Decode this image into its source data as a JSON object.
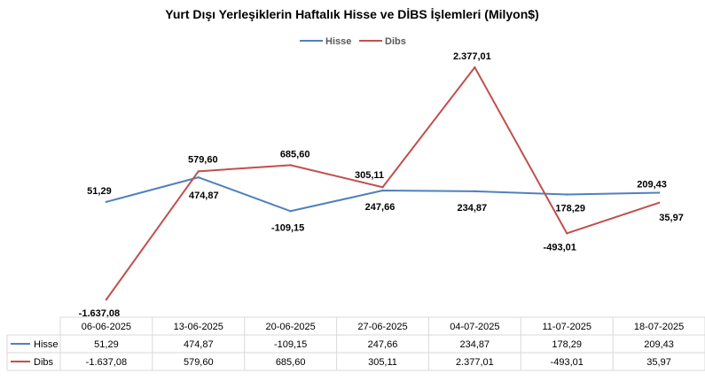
{
  "chart_data": {
    "type": "line",
    "title": "Yurt Dışı Yerleşiklerin Haftalık Hisse ve DİBS İşlemleri (Milyon$)",
    "categories": [
      "06-06-2025",
      "13-06-2025",
      "20-06-2025",
      "27-06-2025",
      "04-07-2025",
      "11-07-2025",
      "18-07-2025"
    ],
    "series": [
      {
        "name": "Hisse",
        "color": "#4f81bd",
        "values": [
          51.29,
          474.87,
          -109.15,
          247.66,
          234.87,
          178.29,
          209.43
        ],
        "labels": [
          "51,29",
          "474,87",
          "-109,15",
          "247,66",
          "234,87",
          "178,29",
          "209,43"
        ]
      },
      {
        "name": "Dibs",
        "color": "#c0504d",
        "values": [
          -1637.08,
          579.6,
          685.6,
          305.11,
          2377.01,
          -493.01,
          35.97
        ],
        "labels": [
          "-1.637,08",
          "579,60",
          "685,60",
          "305,11",
          "2.377,01",
          "-493,01",
          "35,97"
        ]
      }
    ],
    "legend_position": "top-center",
    "data_table": true,
    "grid": false
  }
}
